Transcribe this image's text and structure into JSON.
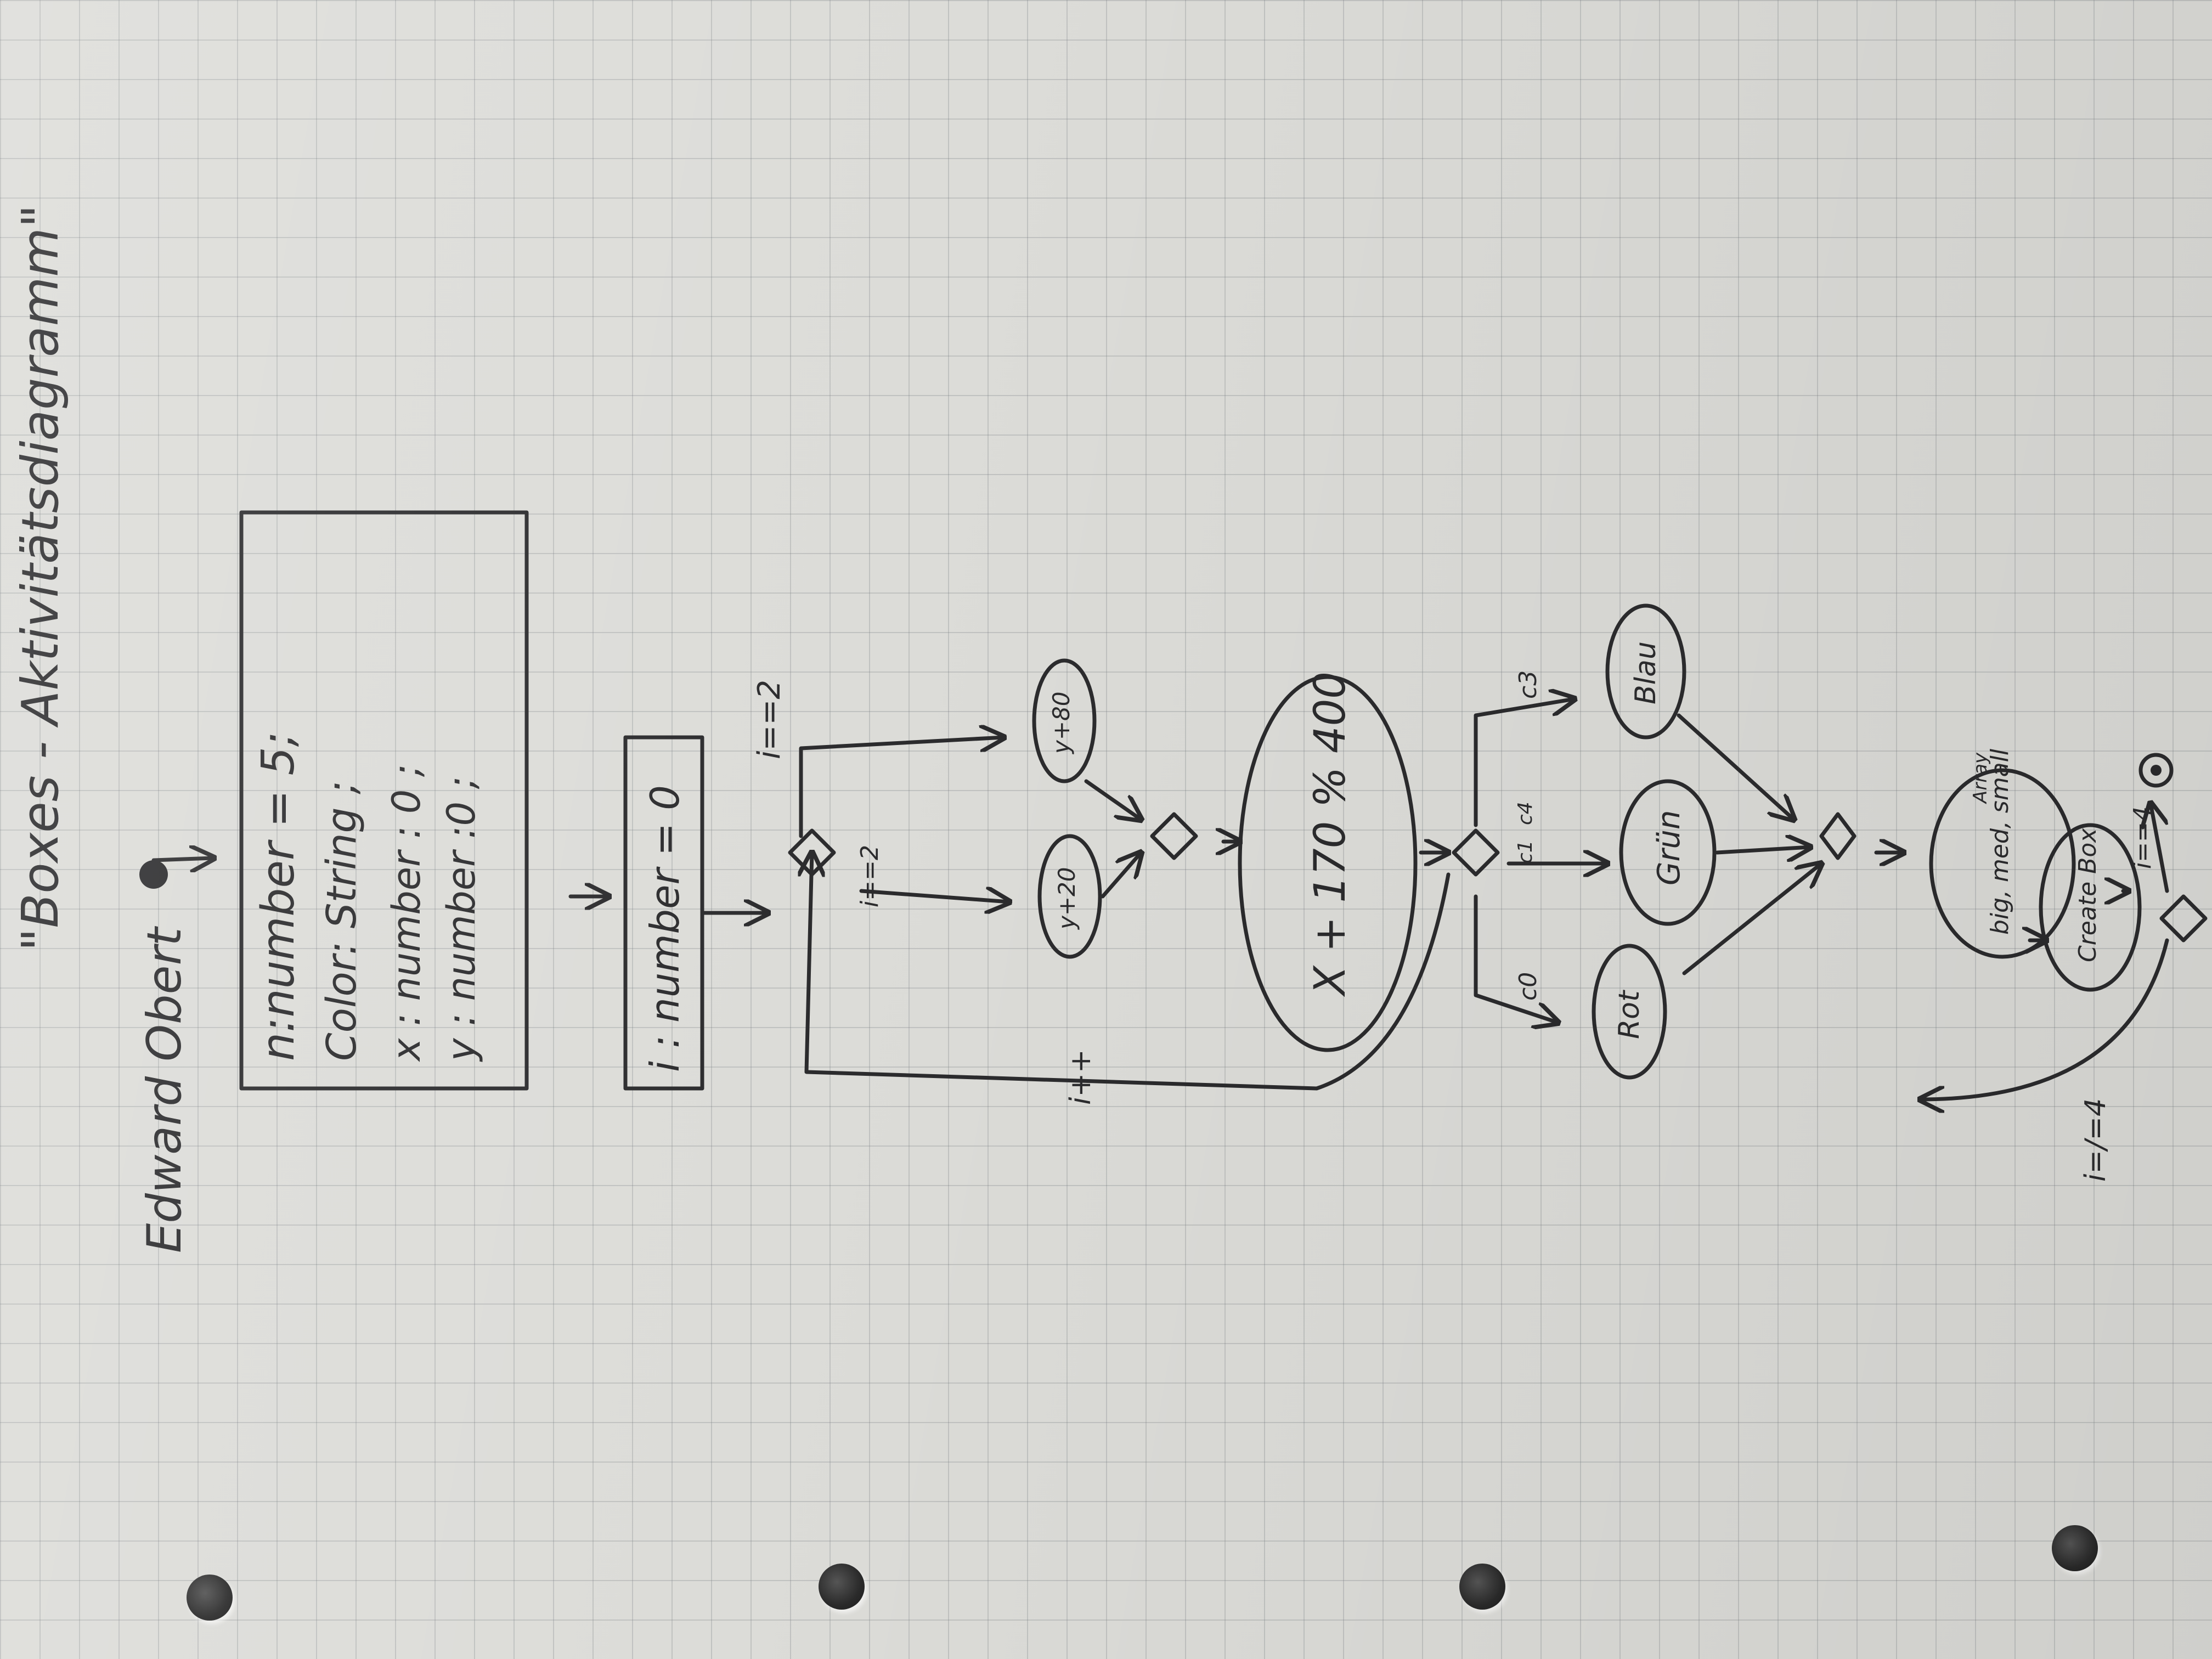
{
  "title": "\"Boxes - Aktivitätsdiagramm\"",
  "author": "Edward Obert",
  "declarations": [
    "n:number = 5;",
    "Color: String ;",
    "x : number : 0 ;",
    "y : number :0 ;"
  ],
  "init": "i : number = 0",
  "guards": {
    "loop_exit": "i==2",
    "y_branch": "i==2",
    "increment": "i++",
    "colors": [
      "c0",
      "c1",
      "c4",
      "c3"
    ],
    "repeat": "i=/=4",
    "end": "i==4"
  },
  "actions": {
    "y20": "y+20",
    "y80": "y+80",
    "modulo": "X + 170 % 400",
    "rot": "Rot",
    "grun": "Grün",
    "blau": "Blau",
    "array_title": "Array",
    "array": "big, med, small",
    "create": "Create Box"
  },
  "colors": {
    "ink": "#2b2b2d",
    "paper": "#dcdcd8",
    "grid": "#7d8288"
  }
}
